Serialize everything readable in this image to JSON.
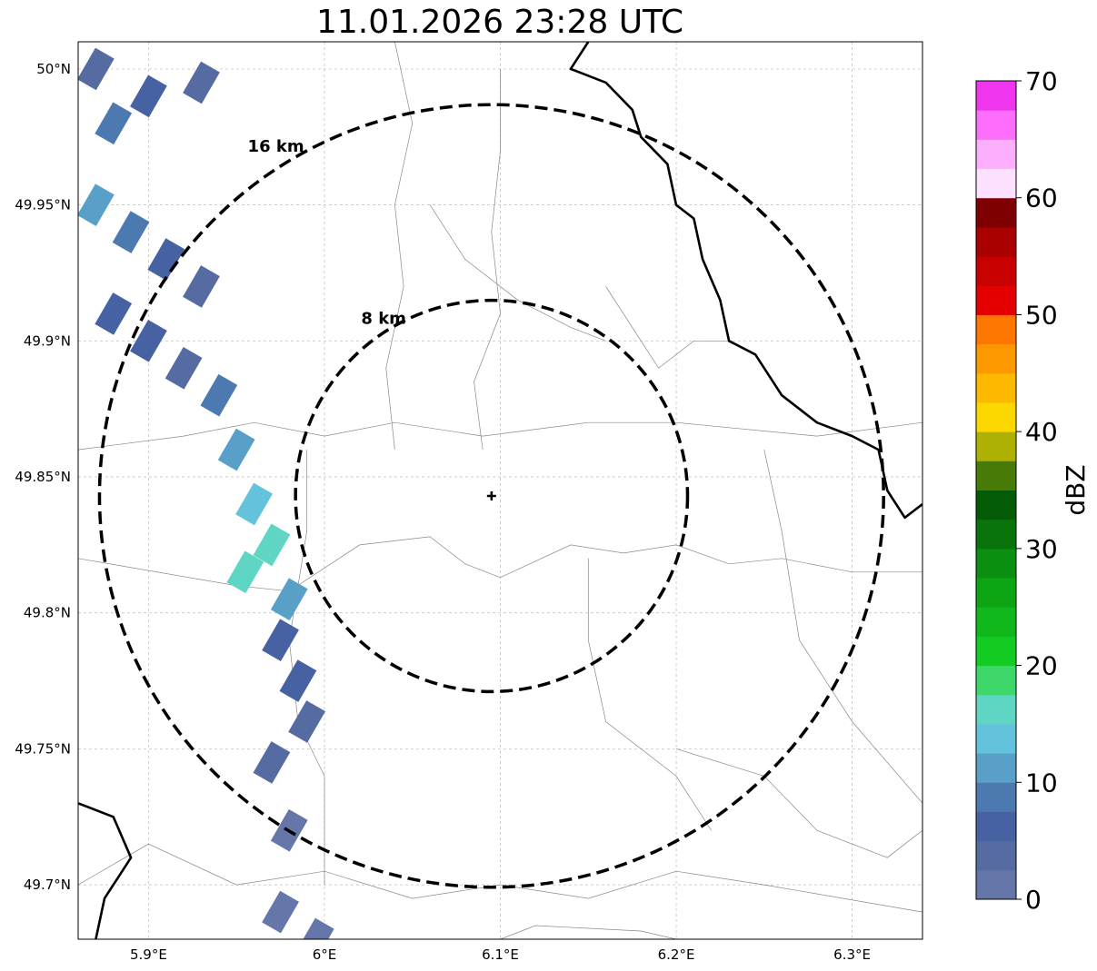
{
  "title": "11.01.2026 23:28 UTC",
  "map": {
    "lon_range": [
      5.86,
      6.34
    ],
    "lat_range": [
      49.68,
      50.01
    ],
    "lon_ticks": [
      {
        "value": 5.9,
        "label": "5.9°E"
      },
      {
        "value": 6.0,
        "label": "6°E"
      },
      {
        "value": 6.1,
        "label": "6.1°E"
      },
      {
        "value": 6.2,
        "label": "6.2°E"
      },
      {
        "value": 6.3,
        "label": "6.3°E"
      }
    ],
    "lat_ticks": [
      {
        "value": 50.0,
        "label": "50°N"
      },
      {
        "value": 49.95,
        "label": "49.95°N"
      },
      {
        "value": 49.9,
        "label": "49.9°N"
      },
      {
        "value": 49.85,
        "label": "49.85°N"
      },
      {
        "value": 49.8,
        "label": "49.8°N"
      },
      {
        "value": 49.75,
        "label": "49.75°N"
      },
      {
        "value": 49.7,
        "label": "49.7°N"
      }
    ],
    "gridlines": true,
    "radar_center": {
      "lon": 6.095,
      "lat": 49.843
    },
    "range_rings": [
      {
        "radius_km": 8,
        "label": "8 km"
      },
      {
        "radius_km": 16,
        "label": "16 km"
      }
    ]
  },
  "colorbar": {
    "label": "dBZ",
    "min": 0,
    "max": 70,
    "tick_labels": [
      "0",
      "10",
      "20",
      "30",
      "40",
      "50",
      "60",
      "70"
    ],
    "colors": [
      "#6577a8",
      "#566ba2",
      "#4762a3",
      "#4d79b1",
      "#59a0c8",
      "#63c2dc",
      "#5fd5c4",
      "#3dd76a",
      "#13cc22",
      "#11b81c",
      "#0ea514",
      "#0b8f10",
      "#08740b",
      "#045b06",
      "#477a06",
      "#aeb004",
      "#fdd700",
      "#fdb800",
      "#fd9800",
      "#fd7600",
      "#e50000",
      "#c80000",
      "#a90000",
      "#7e0000",
      "#fde0fe",
      "#fdaffe",
      "#fd6efd",
      "#f035ef"
    ]
  },
  "radar_cells": [
    {
      "lon": 5.87,
      "lat": 50.0,
      "dbz": 3
    },
    {
      "lon": 5.88,
      "lat": 49.98,
      "dbz": 8
    },
    {
      "lon": 5.9,
      "lat": 49.99,
      "dbz": 5
    },
    {
      "lon": 5.93,
      "lat": 49.995,
      "dbz": 3
    },
    {
      "lon": 5.87,
      "lat": 49.95,
      "dbz": 12
    },
    {
      "lon": 5.89,
      "lat": 49.94,
      "dbz": 9
    },
    {
      "lon": 5.91,
      "lat": 49.93,
      "dbz": 5
    },
    {
      "lon": 5.93,
      "lat": 49.92,
      "dbz": 3
    },
    {
      "lon": 5.88,
      "lat": 49.91,
      "dbz": 7
    },
    {
      "lon": 5.9,
      "lat": 49.9,
      "dbz": 6
    },
    {
      "lon": 5.92,
      "lat": 49.89,
      "dbz": 4
    },
    {
      "lon": 5.94,
      "lat": 49.88,
      "dbz": 8
    },
    {
      "lon": 5.95,
      "lat": 49.86,
      "dbz": 11
    },
    {
      "lon": 5.96,
      "lat": 49.84,
      "dbz": 13
    },
    {
      "lon": 5.97,
      "lat": 49.825,
      "dbz": 15
    },
    {
      "lon": 5.955,
      "lat": 49.815,
      "dbz": 17
    },
    {
      "lon": 5.98,
      "lat": 49.805,
      "dbz": 10
    },
    {
      "lon": 5.975,
      "lat": 49.79,
      "dbz": 6
    },
    {
      "lon": 5.985,
      "lat": 49.775,
      "dbz": 5
    },
    {
      "lon": 5.99,
      "lat": 49.76,
      "dbz": 4
    },
    {
      "lon": 5.97,
      "lat": 49.745,
      "dbz": 3
    },
    {
      "lon": 5.98,
      "lat": 49.72,
      "dbz": 2
    },
    {
      "lon": 5.975,
      "lat": 49.69,
      "dbz": 1
    },
    {
      "lon": 5.995,
      "lat": 49.68,
      "dbz": 1
    }
  ],
  "boundaries": {
    "thick": [
      [
        [
          6.15,
          50.01
        ],
        [
          6.14,
          50.0
        ],
        [
          6.16,
          49.995
        ],
        [
          6.175,
          49.985
        ],
        [
          6.18,
          49.975
        ],
        [
          6.195,
          49.965
        ],
        [
          6.2,
          49.95
        ],
        [
          6.21,
          49.945
        ],
        [
          6.215,
          49.93
        ],
        [
          6.225,
          49.915
        ],
        [
          6.23,
          49.9
        ],
        [
          6.245,
          49.895
        ],
        [
          6.26,
          49.88
        ],
        [
          6.28,
          49.87
        ],
        [
          6.3,
          49.865
        ],
        [
          6.315,
          49.86
        ],
        [
          6.32,
          49.845
        ],
        [
          6.33,
          49.835
        ],
        [
          6.34,
          49.84
        ]
      ],
      [
        [
          5.86,
          49.73
        ],
        [
          5.88,
          49.725
        ],
        [
          5.89,
          49.71
        ],
        [
          5.875,
          49.695
        ],
        [
          5.87,
          49.68
        ]
      ]
    ],
    "thin": [
      [
        [
          5.86,
          49.86
        ],
        [
          5.92,
          49.865
        ],
        [
          5.96,
          49.87
        ],
        [
          6.0,
          49.865
        ],
        [
          6.04,
          49.87
        ],
        [
          6.09,
          49.865
        ],
        [
          6.15,
          49.87
        ],
        [
          6.2,
          49.87
        ],
        [
          6.28,
          49.865
        ],
        [
          6.34,
          49.87
        ]
      ],
      [
        [
          5.86,
          49.82
        ],
        [
          5.95,
          49.81
        ],
        [
          5.98,
          49.808
        ],
        [
          6.02,
          49.825
        ],
        [
          6.06,
          49.828
        ],
        [
          6.08,
          49.818
        ],
        [
          6.1,
          49.813
        ],
        [
          6.14,
          49.825
        ],
        [
          6.17,
          49.822
        ],
        [
          6.2,
          49.825
        ],
        [
          6.23,
          49.818
        ],
        [
          6.26,
          49.82
        ],
        [
          6.3,
          49.815
        ],
        [
          6.34,
          49.815
        ]
      ],
      [
        [
          5.86,
          49.7
        ],
        [
          5.9,
          49.715
        ],
        [
          5.95,
          49.7
        ],
        [
          6.0,
          49.705
        ],
        [
          6.05,
          49.695
        ],
        [
          6.1,
          49.7
        ],
        [
          6.15,
          49.695
        ],
        [
          6.2,
          49.705
        ],
        [
          6.25,
          49.7
        ],
        [
          6.34,
          49.69
        ]
      ],
      [
        [
          6.04,
          50.01
        ],
        [
          6.05,
          49.98
        ],
        [
          6.04,
          49.95
        ],
        [
          6.045,
          49.92
        ],
        [
          6.035,
          49.89
        ],
        [
          6.04,
          49.86
        ]
      ],
      [
        [
          6.1,
          50.0
        ],
        [
          6.1,
          49.97
        ],
        [
          6.095,
          49.94
        ],
        [
          6.1,
          49.91
        ],
        [
          6.085,
          49.885
        ],
        [
          6.09,
          49.86
        ]
      ],
      [
        [
          5.99,
          49.86
        ],
        [
          5.99,
          49.83
        ],
        [
          5.98,
          49.79
        ],
        [
          5.985,
          49.76
        ],
        [
          6.0,
          49.74
        ],
        [
          6.0,
          49.7
        ]
      ],
      [
        [
          6.25,
          49.86
        ],
        [
          6.26,
          49.83
        ],
        [
          6.27,
          49.79
        ],
        [
          6.3,
          49.76
        ],
        [
          6.34,
          49.73
        ]
      ],
      [
        [
          6.15,
          49.82
        ],
        [
          6.15,
          49.79
        ],
        [
          6.16,
          49.76
        ],
        [
          6.2,
          49.74
        ],
        [
          6.22,
          49.72
        ]
      ],
      [
        [
          6.34,
          49.72
        ],
        [
          6.32,
          49.71
        ],
        [
          6.28,
          49.72
        ],
        [
          6.25,
          49.74
        ],
        [
          6.2,
          49.75
        ]
      ],
      [
        [
          6.16,
          49.92
        ],
        [
          6.18,
          49.9
        ],
        [
          6.19,
          49.89
        ],
        [
          6.21,
          49.9
        ],
        [
          6.23,
          49.9
        ]
      ],
      [
        [
          6.06,
          49.95
        ],
        [
          6.08,
          49.93
        ],
        [
          6.11,
          49.915
        ],
        [
          6.14,
          49.905
        ],
        [
          6.16,
          49.9
        ]
      ],
      [
        [
          6.1,
          49.68
        ],
        [
          6.12,
          49.685
        ],
        [
          6.18,
          49.683
        ],
        [
          6.2,
          49.68
        ]
      ]
    ]
  }
}
